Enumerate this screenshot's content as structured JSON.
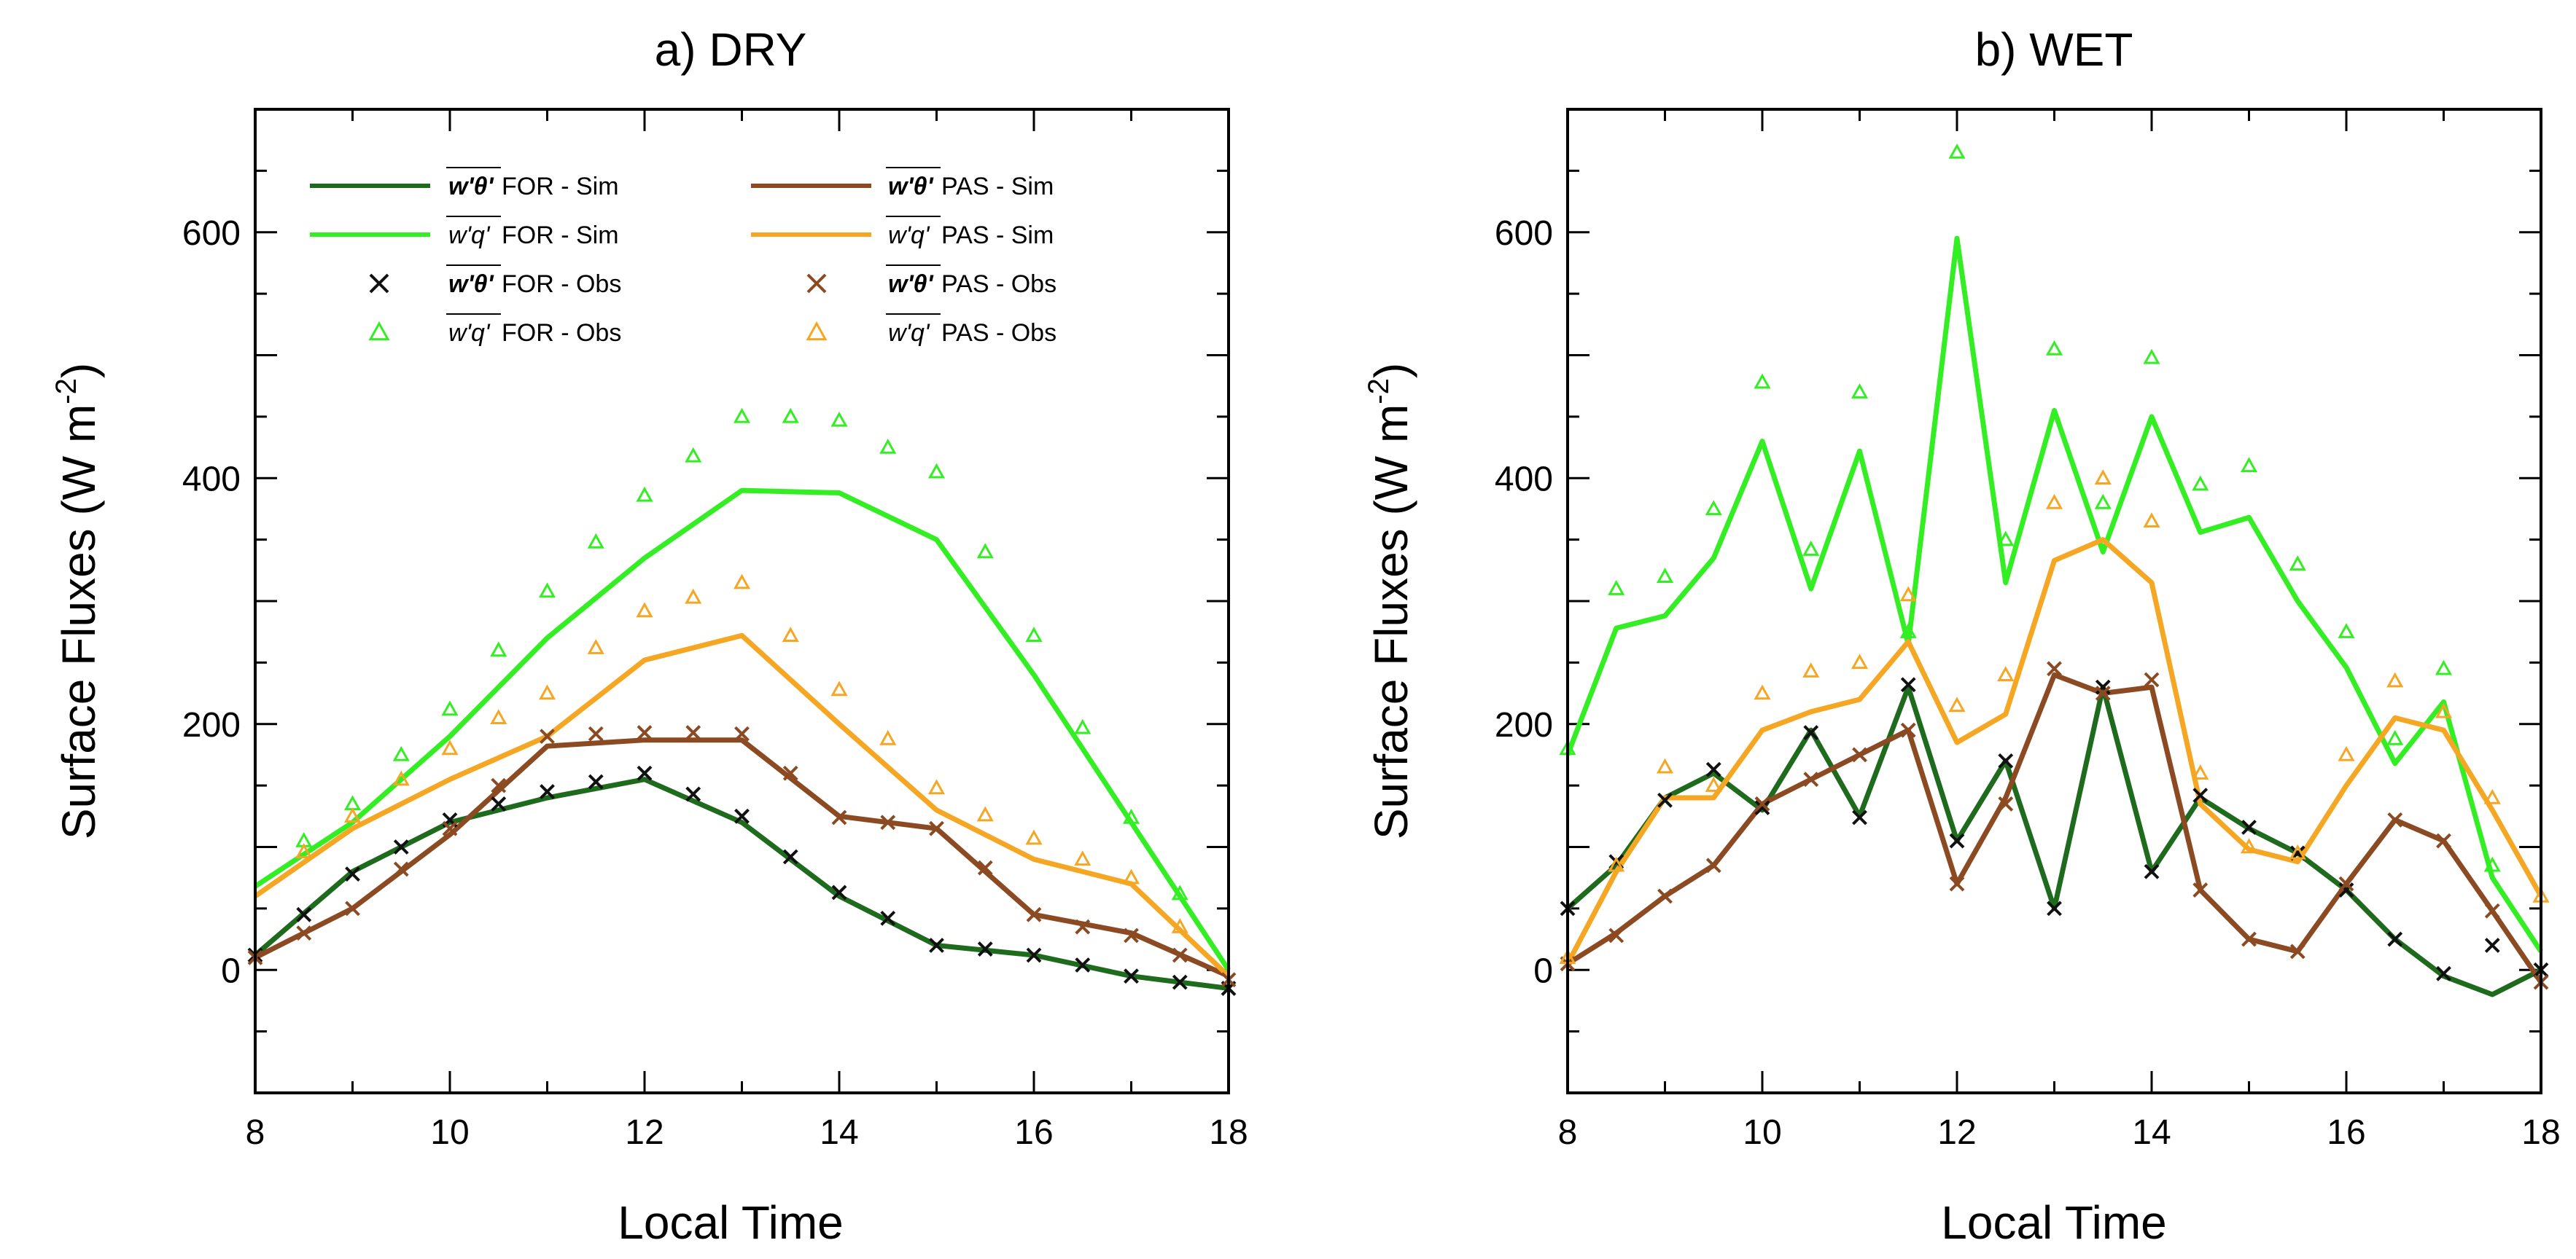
{
  "figure": {
    "colors": {
      "for_wt": "#1e6b1e",
      "for_wq": "#33ee22",
      "pas_wt": "#8b4a22",
      "pas_wq": "#f5a623",
      "obs_for_wt": "#111111"
    },
    "legend": {
      "for_wt_sim": {
        "symbol": "w'θ'",
        "text": " FOR - Sim"
      },
      "for_wq_sim": {
        "symbol": "w'q'",
        "text": " FOR - Sim"
      },
      "for_wt_obs": {
        "symbol": "w'θ'",
        "text": " FOR - Obs"
      },
      "for_wq_obs": {
        "symbol": "w'q'",
        "text": " FOR - Obs"
      },
      "pas_wt_sim": {
        "symbol": "w'θ'",
        "text": " PAS - Sim"
      },
      "pas_wq_sim": {
        "symbol": "w'q'",
        "text": " PAS - Sim"
      },
      "pas_wt_obs": {
        "symbol": "w'θ'",
        "text": " PAS - Obs"
      },
      "pas_wq_obs": {
        "symbol": "w'q'",
        "text": " PAS - Obs"
      }
    }
  },
  "chart_data": [
    {
      "type": "line",
      "title": "a)  DRY",
      "xlabel": "Local Time",
      "ylabel": "Surface Fluxes (W m",
      "ylabel_sup": "-2",
      "ylabel_end": ")",
      "xlim": [
        8,
        18
      ],
      "ylim": [
        -100,
        700
      ],
      "xticks": [
        8,
        10,
        12,
        14,
        16,
        18
      ],
      "yticks": [
        0,
        200,
        400,
        600
      ],
      "legend_position": "top-left",
      "series": [
        {
          "name": "w'θ' FOR - Sim",
          "kind": "line",
          "color_key": "for_wt",
          "x": [
            8,
            9,
            10,
            11,
            12,
            13,
            14,
            15,
            16,
            17,
            18
          ],
          "y": [
            12,
            80,
            120,
            140,
            155,
            120,
            60,
            20,
            12,
            -5,
            -15
          ]
        },
        {
          "name": "w'q' FOR - Sim",
          "kind": "line",
          "color_key": "for_wq",
          "x": [
            8,
            9,
            10,
            11,
            12,
            13,
            14,
            15,
            16,
            17,
            18
          ],
          "y": [
            68,
            120,
            190,
            270,
            335,
            390,
            388,
            350,
            240,
            120,
            0
          ]
        },
        {
          "name": "w'θ' PAS - Sim",
          "kind": "line",
          "color_key": "pas_wt",
          "x": [
            8,
            9,
            10,
            11,
            12,
            13,
            14,
            15,
            16,
            17,
            18
          ],
          "y": [
            10,
            50,
            110,
            182,
            187,
            187,
            125,
            115,
            45,
            30,
            -5
          ]
        },
        {
          "name": "w'q' PAS - Sim",
          "kind": "line",
          "color_key": "pas_wq",
          "x": [
            8,
            9,
            10,
            11,
            12,
            13,
            14,
            15,
            16,
            17,
            18
          ],
          "y": [
            60,
            115,
            155,
            190,
            252,
            272,
            200,
            130,
            90,
            70,
            -5
          ]
        },
        {
          "name": "w'θ' FOR - Obs",
          "kind": "cross",
          "color_key": "obs_for_wt",
          "x": [
            8,
            8.5,
            9,
            9.5,
            10,
            10.5,
            11,
            11.5,
            12,
            12.5,
            13,
            13.5,
            14,
            14.5,
            15,
            15.5,
            16,
            16.5,
            17,
            17.5,
            18
          ],
          "y": [
            12,
            45,
            78,
            100,
            122,
            135,
            145,
            153,
            160,
            143,
            125,
            92,
            63,
            42,
            20,
            17,
            12,
            4,
            -5,
            -10,
            -15
          ]
        },
        {
          "name": "w'q' FOR - Obs",
          "kind": "triangle",
          "color_key": "for_wq",
          "x": [
            8.5,
            9,
            9.5,
            10,
            10.5,
            11,
            11.5,
            12,
            12.5,
            13,
            13.5,
            14,
            14.5,
            15,
            15.5,
            16,
            16.5,
            17,
            17.5
          ],
          "y": [
            105,
            135,
            175,
            212,
            260,
            308,
            348,
            386,
            418,
            450,
            450,
            447,
            425,
            405,
            340,
            272,
            197,
            124,
            62
          ]
        },
        {
          "name": "w'θ' PAS - Obs",
          "kind": "cross",
          "color_key": "pas_wt",
          "x": [
            8,
            8.5,
            9,
            9.5,
            10,
            10.5,
            11,
            11.5,
            12,
            12.5,
            13,
            13.5,
            14,
            14.5,
            15,
            15.5,
            16,
            16.5,
            17,
            17.5,
            18
          ],
          "y": [
            10,
            30,
            50,
            82,
            115,
            150,
            190,
            192,
            193,
            193,
            192,
            160,
            124,
            120,
            115,
            83,
            45,
            35,
            28,
            12,
            -8
          ]
        },
        {
          "name": "w'q' PAS - Obs",
          "kind": "triangle",
          "color_key": "pas_wq",
          "x": [
            8.5,
            9,
            9.5,
            10,
            10.5,
            11,
            11.5,
            12,
            12.5,
            13,
            13.5,
            14,
            14.5,
            15,
            15.5,
            16,
            16.5,
            17,
            17.5
          ],
          "y": [
            96,
            125,
            155,
            180,
            205,
            225,
            262,
            292,
            303,
            315,
            272,
            228,
            188,
            148,
            126,
            107,
            90,
            75,
            35
          ]
        }
      ]
    },
    {
      "type": "line",
      "title": "b)  WET",
      "xlabel": "Local Time",
      "ylabel": "Surface Fluxes (W m",
      "ylabel_sup": "-2",
      "ylabel_end": ")",
      "xlim": [
        8,
        18
      ],
      "ylim": [
        -100,
        700
      ],
      "xticks": [
        8,
        10,
        12,
        14,
        16,
        18
      ],
      "yticks": [
        0,
        200,
        400,
        600
      ],
      "series": [
        {
          "name": "w'θ' FOR - Sim",
          "kind": "line",
          "color_key": "for_wt",
          "x": [
            8,
            8.5,
            9,
            9.5,
            10,
            10.5,
            11,
            11.5,
            12,
            12.5,
            13,
            13.5,
            14,
            14.5,
            15,
            15.5,
            16,
            16.5,
            17,
            17.5,
            18
          ],
          "y": [
            50,
            85,
            140,
            160,
            130,
            195,
            125,
            230,
            105,
            170,
            50,
            230,
            80,
            140,
            115,
            95,
            65,
            25,
            -5,
            -20,
            0
          ]
        },
        {
          "name": "w'q' FOR - Sim",
          "kind": "line",
          "color_key": "for_wq",
          "x": [
            8,
            8.5,
            9,
            9.5,
            10,
            10.5,
            11,
            11.5,
            12,
            12.5,
            13,
            13.5,
            14,
            14.5,
            15,
            15.5,
            16,
            16.5,
            17,
            17.5,
            18
          ],
          "y": [
            175,
            278,
            288,
            335,
            430,
            310,
            422,
            265,
            595,
            315,
            455,
            340,
            450,
            356,
            368,
            300,
            246,
            168,
            218,
            75,
            15
          ]
        },
        {
          "name": "w'θ' PAS - Sim",
          "kind": "line",
          "color_key": "pas_wt",
          "x": [
            8,
            8.5,
            9,
            9.5,
            10,
            10.5,
            11,
            11.5,
            12,
            12.5,
            13,
            13.5,
            14,
            14.5,
            15,
            15.5,
            16,
            16.5,
            17,
            17.5,
            18
          ],
          "y": [
            5,
            30,
            60,
            85,
            135,
            155,
            175,
            195,
            70,
            140,
            240,
            225,
            230,
            65,
            25,
            15,
            70,
            122,
            105,
            48,
            -10
          ]
        },
        {
          "name": "w'q' PAS - Sim",
          "kind": "line",
          "color_key": "pas_wq",
          "x": [
            8,
            8.5,
            9,
            9.5,
            10,
            10.5,
            11,
            11.5,
            12,
            12.5,
            13,
            13.5,
            14,
            14.5,
            15,
            15.5,
            16,
            16.5,
            17,
            17.5,
            18
          ],
          "y": [
            5,
            80,
            140,
            140,
            195,
            210,
            220,
            267,
            185,
            208,
            333,
            350,
            315,
            135,
            98,
            88,
            150,
            205,
            195,
            130,
            60
          ]
        },
        {
          "name": "w'θ' FOR - Obs",
          "kind": "cross",
          "color_key": "obs_for_wt",
          "x": [
            8,
            8.5,
            9,
            9.5,
            10,
            10.5,
            11,
            11.5,
            12,
            12.5,
            13,
            13.5,
            14,
            14.5,
            15,
            15.5,
            16,
            16.5,
            17,
            17.5,
            18
          ],
          "y": [
            50,
            88,
            138,
            163,
            132,
            193,
            124,
            232,
            105,
            170,
            50,
            230,
            80,
            142,
            116,
            95,
            65,
            25,
            -3,
            20,
            0
          ]
        },
        {
          "name": "w'q' FOR - Obs",
          "kind": "triangle",
          "color_key": "for_wq",
          "x": [
            8,
            8.5,
            9,
            9.5,
            10,
            10.5,
            11,
            11.5,
            12,
            12.5,
            13,
            13.5,
            14,
            14.5,
            15,
            15.5,
            16,
            16.5,
            17,
            17.5
          ],
          "y": [
            180,
            310,
            320,
            375,
            478,
            342,
            470,
            275,
            665,
            350,
            505,
            380,
            498,
            395,
            410,
            330,
            275,
            188,
            245,
            85
          ]
        },
        {
          "name": "w'θ' PAS - Obs",
          "kind": "cross",
          "color_key": "pas_wt",
          "x": [
            8,
            8.5,
            9,
            9.5,
            10,
            10.5,
            11,
            11.5,
            12,
            12.5,
            13,
            13.5,
            14,
            14.5,
            15,
            15.5,
            16,
            16.5,
            17,
            17.5,
            18
          ],
          "y": [
            5,
            28,
            60,
            85,
            135,
            155,
            175,
            195,
            70,
            135,
            245,
            225,
            236,
            65,
            25,
            15,
            70,
            122,
            105,
            48,
            -10
          ]
        },
        {
          "name": "w'q' PAS - Obs",
          "kind": "triangle",
          "color_key": "pas_wq",
          "x": [
            8,
            8.5,
            9,
            9.5,
            10,
            10.5,
            11,
            11.5,
            12,
            12.5,
            13,
            13.5,
            14,
            14.5,
            15,
            15.5,
            16,
            16.5,
            17,
            17.5,
            18
          ],
          "y": [
            10,
            85,
            165,
            150,
            225,
            243,
            250,
            305,
            215,
            240,
            380,
            400,
            365,
            160,
            100,
            95,
            175,
            235,
            210,
            140,
            60
          ]
        }
      ]
    }
  ]
}
